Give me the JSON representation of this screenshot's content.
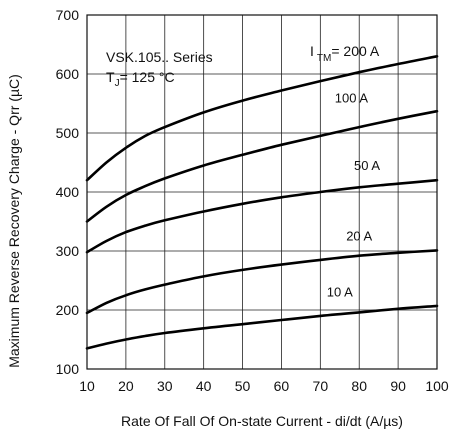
{
  "chart_data": {
    "type": "line",
    "title": "",
    "xlabel": "Rate Of Fall Of On-state Current - di/dt (A/µs)",
    "ylabel": "Maximum Reverse Recovery Charge - Qrr (µC)",
    "xlim": [
      10,
      100
    ],
    "ylim": [
      100,
      700
    ],
    "xticks": [
      10,
      20,
      30,
      40,
      50,
      60,
      70,
      80,
      90,
      100
    ],
    "yticks": [
      100,
      200,
      300,
      400,
      500,
      600,
      700
    ],
    "grid": true,
    "legend": "none",
    "annotations": {
      "series_name": "VSK.105.. Series",
      "temp_prefix": "T",
      "temp_sub": "J",
      "temp_value": "= 125 °C",
      "current_prefix": "I",
      "current_sub": "TM",
      "current_value": "= 200 A"
    },
    "series": [
      {
        "label": "200 A",
        "x": [
          10,
          15,
          20,
          25,
          30,
          40,
          50,
          60,
          70,
          80,
          90,
          100
        ],
        "y": [
          420,
          450,
          475,
          495,
          510,
          535,
          555,
          572,
          588,
          603,
          617,
          630
        ]
      },
      {
        "label": "100 A",
        "x": [
          10,
          15,
          20,
          25,
          30,
          40,
          50,
          60,
          70,
          80,
          90,
          100
        ],
        "y": [
          350,
          375,
          395,
          410,
          423,
          445,
          463,
          480,
          495,
          510,
          524,
          537
        ]
      },
      {
        "label": "50 A",
        "x": [
          10,
          15,
          20,
          25,
          30,
          40,
          50,
          60,
          70,
          80,
          90,
          100
        ],
        "y": [
          298,
          317,
          332,
          343,
          352,
          367,
          380,
          391,
          400,
          408,
          414,
          420
        ]
      },
      {
        "label": "20 A",
        "x": [
          10,
          15,
          20,
          25,
          30,
          40,
          50,
          60,
          70,
          80,
          90,
          100
        ],
        "y": [
          195,
          212,
          225,
          235,
          243,
          257,
          268,
          277,
          285,
          292,
          297,
          301
        ]
      },
      {
        "label": "10 A",
        "x": [
          10,
          15,
          20,
          25,
          30,
          40,
          50,
          60,
          70,
          80,
          90,
          100
        ],
        "y": [
          135,
          143,
          150,
          156,
          161,
          169,
          176,
          183,
          190,
          196,
          202,
          207
        ]
      }
    ]
  }
}
